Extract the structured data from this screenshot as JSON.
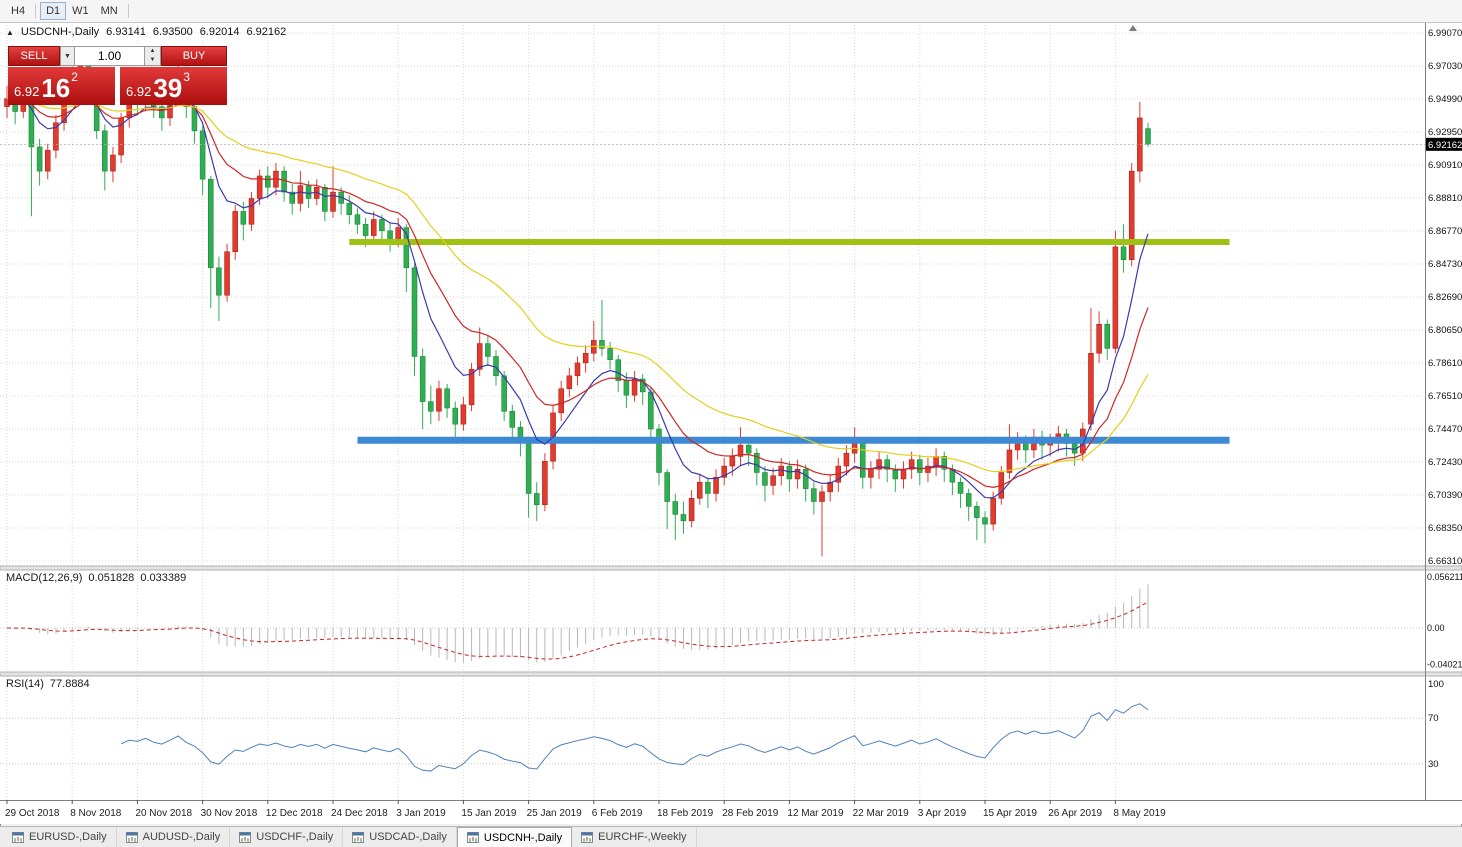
{
  "toolbar": {
    "timeframes": [
      "H4",
      "D1",
      "W1",
      "MN"
    ],
    "active": "D1"
  },
  "chart": {
    "symbol_line": {
      "glyph": "▲",
      "title": "USDCNH-,Daily",
      "open": "6.93141",
      "high": "6.93500",
      "low": "6.92014",
      "close": "6.92162"
    }
  },
  "trade_panel": {
    "sell_label": "SELL",
    "buy_label": "BUY",
    "volume": "1.00",
    "bid": {
      "big": "6.92",
      "pips": "16",
      "point": "2"
    },
    "ask": {
      "big": "6.92",
      "pips": "39",
      "point": "3"
    }
  },
  "macd_panel": {
    "title": "MACD(12,26,9)",
    "main": "0.051828",
    "signal": "0.033389"
  },
  "rsi_panel": {
    "title": "RSI(14)",
    "value": "77.8884"
  },
  "bottom_tabs": [
    {
      "label": "EURUSD-,Daily",
      "active": false
    },
    {
      "label": "AUDUSD-,Daily",
      "active": false
    },
    {
      "label": "USDCHF-,Daily",
      "active": false
    },
    {
      "label": "USDCAD-,Daily",
      "active": false
    },
    {
      "label": "USDCNH-,Daily",
      "active": true
    },
    {
      "label": "EURCHF-,Weekly",
      "active": false
    }
  ],
  "colors": {
    "bull": "#e23b2e",
    "bull_dark": "#9c1710",
    "bear": "#2fae52",
    "bear_dark": "#177a32",
    "grid": "#dadada",
    "macd_hist": "#b8b8b8",
    "macd_signal": "#cc2222",
    "rsi_line": "#4f81bd",
    "tag_bg": "#000000",
    "tag_text": "#ffffff"
  },
  "chart_data": {
    "type": "candlestick",
    "symbol": "USDCNH-",
    "timeframe": "Daily",
    "current_price": 6.92162,
    "current_price_label": "6.92162",
    "current_bar": {
      "open": 6.93141,
      "high": 6.935,
      "low": 6.92014,
      "close": 6.92162
    },
    "price_axis": [
      "6.99070",
      "6.97030",
      "6.94990",
      "6.92950",
      "6.90910",
      "6.88810",
      "6.86770",
      "6.84730",
      "6.82690",
      "6.80650",
      "6.78610",
      "6.76510",
      "6.74470",
      "6.72430",
      "6.70390",
      "6.68350",
      "6.66310"
    ],
    "dates": [
      "29 Oct 2018",
      "8 Nov 2018",
      "20 Nov 2018",
      "30 Nov 2018",
      "12 Dec 2018",
      "24 Dec 2018",
      "3 Jan 2019",
      "15 Jan 2019",
      "25 Jan 2019",
      "6 Feb 2019",
      "18 Feb 2019",
      "28 Feb 2019",
      "12 Mar 2019",
      "22 Mar 2019",
      "3 Apr 2019",
      "15 Apr 2019",
      "26 Apr 2019",
      "8 May 2019"
    ],
    "bars_per_date_tick": 8,
    "moving_averages": [
      {
        "name": "ma-fast-blue",
        "color": "#3a3aad",
        "period": 8
      },
      {
        "name": "ma-medium-red",
        "color": "#cf2626",
        "period": 16
      },
      {
        "name": "ma-slow-yellow",
        "color": "#e4cf1b",
        "period": 34
      }
    ],
    "hlines": [
      {
        "name": "resistance-line-green",
        "color": "#9fc113",
        "price": 6.861,
        "from_index": 42,
        "to_index": 150,
        "width": 6
      },
      {
        "name": "support-line-blue",
        "color": "#3e89d4",
        "price": 6.738,
        "from_index": 43,
        "to_index": 150,
        "width": 7
      }
    ],
    "macd": {
      "fast": 12,
      "slow": 26,
      "signal": 9,
      "axis_labels": [
        "0.056211",
        "0.00",
        "-0.040218"
      ]
    },
    "rsi": {
      "period": 14,
      "levels": [
        70,
        30
      ],
      "axis_labels": [
        "100",
        "70",
        "30"
      ]
    },
    "candles": [
      [
        6.945,
        6.958,
        6.938,
        6.95
      ],
      [
        6.95,
        6.955,
        6.934,
        6.942
      ],
      [
        6.942,
        6.963,
        6.938,
        6.958
      ],
      [
        6.958,
        6.96,
        6.877,
        6.92
      ],
      [
        6.92,
        6.925,
        6.896,
        6.905
      ],
      [
        6.905,
        6.922,
        6.9,
        6.918
      ],
      [
        6.918,
        6.94,
        6.913,
        6.935
      ],
      [
        6.935,
        6.956,
        6.93,
        6.952
      ],
      [
        6.952,
        6.97,
        6.947,
        6.965
      ],
      [
        6.965,
        6.978,
        6.958,
        6.972
      ],
      [
        6.972,
        6.975,
        6.95,
        6.958
      ],
      [
        6.958,
        6.962,
        6.925,
        6.93
      ],
      [
        6.93,
        6.934,
        6.893,
        6.905
      ],
      [
        6.905,
        6.92,
        6.898,
        6.915
      ],
      [
        6.915,
        6.941,
        6.91,
        6.938
      ],
      [
        6.938,
        6.958,
        6.932,
        6.953
      ],
      [
        6.953,
        6.959,
        6.94,
        6.948
      ],
      [
        6.948,
        6.965,
        6.942,
        6.96
      ],
      [
        6.96,
        6.963,
        6.938,
        6.945
      ],
      [
        6.945,
        6.95,
        6.93,
        6.938
      ],
      [
        6.938,
        6.956,
        6.933,
        6.952
      ],
      [
        6.952,
        6.977,
        6.947,
        6.968
      ],
      [
        6.968,
        6.97,
        6.938,
        6.945
      ],
      [
        6.945,
        6.95,
        6.922,
        6.93
      ],
      [
        6.93,
        6.933,
        6.89,
        6.9
      ],
      [
        6.9,
        6.902,
        6.82,
        6.845
      ],
      [
        6.845,
        6.852,
        6.812,
        6.828
      ],
      [
        6.828,
        6.86,
        6.824,
        6.855
      ],
      [
        6.855,
        6.884,
        6.85,
        6.88
      ],
      [
        6.88,
        6.886,
        6.862,
        6.872
      ],
      [
        6.872,
        6.892,
        6.868,
        6.888
      ],
      [
        6.888,
        6.906,
        6.884,
        6.902
      ],
      [
        6.902,
        6.908,
        6.888,
        6.895
      ],
      [
        6.895,
        6.91,
        6.89,
        6.905
      ],
      [
        6.905,
        6.908,
        6.886,
        6.892
      ],
      [
        6.892,
        6.897,
        6.878,
        6.885
      ],
      [
        6.885,
        6.905,
        6.88,
        6.896
      ],
      [
        6.896,
        6.899,
        6.882,
        6.888
      ],
      [
        6.888,
        6.9,
        6.884,
        6.895
      ],
      [
        6.895,
        6.897,
        6.874,
        6.88
      ],
      [
        6.88,
        6.908,
        6.876,
        6.892
      ],
      [
        6.892,
        6.895,
        6.878,
        6.885
      ],
      [
        6.885,
        6.89,
        6.872,
        6.878
      ],
      [
        6.878,
        6.882,
        6.866,
        6.872
      ],
      [
        6.872,
        6.876,
        6.858,
        6.865
      ],
      [
        6.865,
        6.88,
        6.86,
        6.875
      ],
      [
        6.875,
        6.878,
        6.862,
        6.868
      ],
      [
        6.868,
        6.873,
        6.855,
        6.862
      ],
      [
        6.862,
        6.876,
        6.858,
        6.87
      ],
      [
        6.87,
        6.872,
        6.83,
        6.845
      ],
      [
        6.845,
        6.848,
        6.778,
        6.79
      ],
      [
        6.79,
        6.795,
        6.745,
        6.762
      ],
      [
        6.762,
        6.772,
        6.748,
        6.756
      ],
      [
        6.756,
        6.775,
        6.75,
        6.77
      ],
      [
        6.77,
        6.773,
        6.752,
        6.758
      ],
      [
        6.758,
        6.762,
        6.74,
        6.748
      ],
      [
        6.748,
        6.765,
        6.744,
        6.76
      ],
      [
        6.76,
        6.786,
        6.756,
        6.782
      ],
      [
        6.782,
        6.808,
        6.778,
        6.798
      ],
      [
        6.798,
        6.803,
        6.784,
        6.79
      ],
      [
        6.79,
        6.794,
        6.772,
        6.778
      ],
      [
        6.778,
        6.781,
        6.75,
        6.756
      ],
      [
        6.756,
        6.76,
        6.74,
        6.746
      ],
      [
        6.746,
        6.75,
        6.728,
        6.738
      ],
      [
        6.738,
        6.74,
        6.69,
        6.705
      ],
      [
        6.705,
        6.712,
        6.688,
        6.698
      ],
      [
        6.698,
        6.73,
        6.694,
        6.725
      ],
      [
        6.725,
        6.76,
        6.72,
        6.755
      ],
      [
        6.755,
        6.775,
        6.75,
        6.77
      ],
      [
        6.77,
        6.783,
        6.765,
        6.778
      ],
      [
        6.778,
        6.79,
        6.772,
        6.786
      ],
      [
        6.786,
        6.797,
        6.78,
        6.792
      ],
      [
        6.792,
        6.812,
        6.787,
        6.8
      ],
      [
        6.8,
        6.825,
        6.79,
        6.795
      ],
      [
        6.795,
        6.799,
        6.782,
        6.788
      ],
      [
        6.788,
        6.791,
        6.768,
        6.775
      ],
      [
        6.775,
        6.78,
        6.758,
        6.766
      ],
      [
        6.766,
        6.781,
        6.762,
        6.776
      ],
      [
        6.776,
        6.779,
        6.76,
        6.768
      ],
      [
        6.768,
        6.771,
        6.738,
        6.745
      ],
      [
        6.745,
        6.748,
        6.71,
        6.718
      ],
      [
        6.718,
        6.72,
        6.683,
        6.7
      ],
      [
        6.7,
        6.705,
        6.676,
        6.692
      ],
      [
        6.692,
        6.7,
        6.68,
        6.688
      ],
      [
        6.688,
        6.707,
        6.684,
        6.702
      ],
      [
        6.702,
        6.717,
        6.698,
        6.712
      ],
      [
        6.712,
        6.715,
        6.696,
        6.705
      ],
      [
        6.705,
        6.72,
        6.7,
        6.715
      ],
      [
        6.715,
        6.727,
        6.71,
        6.722
      ],
      [
        6.722,
        6.733,
        6.716,
        6.728
      ],
      [
        6.728,
        6.746,
        6.722,
        6.735
      ],
      [
        6.735,
        6.739,
        6.722,
        6.73
      ],
      [
        6.73,
        6.733,
        6.71,
        6.718
      ],
      [
        6.718,
        6.722,
        6.7,
        6.71
      ],
      [
        6.71,
        6.721,
        6.704,
        6.716
      ],
      [
        6.716,
        6.727,
        6.71,
        6.722
      ],
      [
        6.722,
        6.725,
        6.706,
        6.714
      ],
      [
        6.714,
        6.726,
        6.708,
        6.72
      ],
      [
        6.72,
        6.723,
        6.7,
        6.708
      ],
      [
        6.708,
        6.712,
        6.692,
        6.7
      ],
      [
        6.7,
        6.71,
        6.666,
        6.706
      ],
      [
        6.706,
        6.717,
        6.7,
        6.712
      ],
      [
        6.712,
        6.727,
        6.706,
        6.722
      ],
      [
        6.722,
        6.735,
        6.716,
        6.73
      ],
      [
        6.73,
        6.746,
        6.724,
        6.738
      ],
      [
        6.738,
        6.74,
        6.708,
        6.715
      ],
      [
        6.715,
        6.725,
        6.708,
        6.72
      ],
      [
        6.72,
        6.731,
        6.714,
        6.726
      ],
      [
        6.726,
        6.729,
        6.712,
        6.72
      ],
      [
        6.72,
        6.723,
        6.706,
        6.714
      ],
      [
        6.714,
        6.725,
        6.708,
        6.72
      ],
      [
        6.72,
        6.731,
        6.714,
        6.726
      ],
      [
        6.726,
        6.729,
        6.71,
        6.718
      ],
      [
        6.718,
        6.727,
        6.712,
        6.722
      ],
      [
        6.722,
        6.733,
        6.716,
        6.728
      ],
      [
        6.728,
        6.731,
        6.712,
        6.72
      ],
      [
        6.72,
        6.723,
        6.704,
        6.712
      ],
      [
        6.712,
        6.715,
        6.696,
        6.705
      ],
      [
        6.705,
        6.708,
        6.688,
        6.697
      ],
      [
        6.697,
        6.7,
        6.676,
        6.69
      ],
      [
        6.69,
        6.694,
        6.674,
        6.686
      ],
      [
        6.686,
        6.706,
        6.682,
        6.702
      ],
      [
        6.702,
        6.722,
        6.698,
        6.718
      ],
      [
        6.718,
        6.748,
        6.714,
        6.732
      ],
      [
        6.732,
        6.743,
        6.726,
        6.738
      ],
      [
        6.738,
        6.741,
        6.724,
        6.732
      ],
      [
        6.732,
        6.745,
        6.727,
        6.74
      ],
      [
        6.74,
        6.744,
        6.726,
        6.735
      ],
      [
        6.735,
        6.742,
        6.728,
        6.737
      ],
      [
        6.737,
        6.747,
        6.731,
        6.742
      ],
      [
        6.742,
        6.745,
        6.728,
        6.736
      ],
      [
        6.736,
        6.74,
        6.722,
        6.73
      ],
      [
        6.73,
        6.749,
        6.725,
        6.745
      ],
      [
        6.748,
        6.82,
        6.744,
        6.792
      ],
      [
        6.792,
        6.818,
        6.786,
        6.81
      ],
      [
        6.81,
        6.813,
        6.788,
        6.795
      ],
      [
        6.795,
        6.868,
        6.792,
        6.858
      ],
      [
        6.858,
        6.872,
        6.842,
        6.85
      ],
      [
        6.85,
        6.91,
        6.846,
        6.905
      ],
      [
        6.905,
        6.948,
        6.898,
        6.938
      ],
      [
        6.93141,
        6.935,
        6.92014,
        6.92162
      ]
    ]
  }
}
